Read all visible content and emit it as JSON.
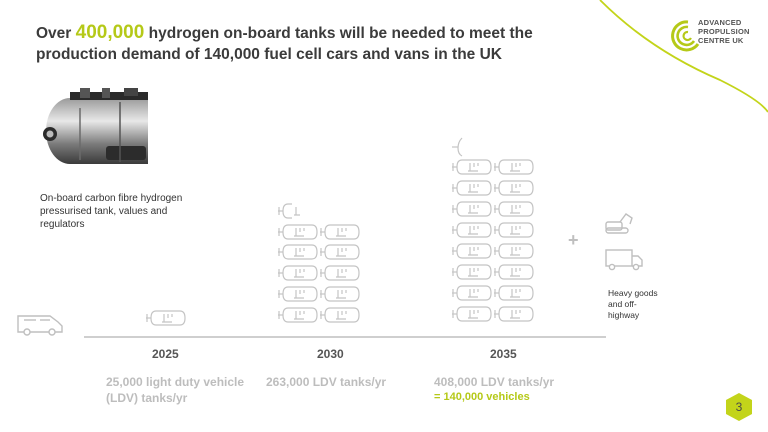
{
  "title": {
    "prefix": "Over ",
    "highlight": "400,000",
    "rest": " hydrogen on-board tanks will be needed to meet the production demand of 140,000 fuel cell cars and vans in the UK"
  },
  "logo": {
    "line1": "ADVANCED",
    "line2": "PROPULSION",
    "line3": "CENTRE UK"
  },
  "tank_caption": "On-board carbon fibre hydrogen pressurised tank, values and regulators",
  "years": {
    "y2025": "2025",
    "y2030": "2030",
    "y2035": "2035"
  },
  "labels": {
    "l2025": "25,000 light duty vehicle (LDV) tanks/yr",
    "l2030": "263,000 LDV tanks/yr",
    "l2035": "408,000 LDV tanks/yr",
    "l2035_vehicles": "= 140,000 vehicles"
  },
  "plus": "+",
  "hgv_label": "Heavy goods and off-highway",
  "page_number": "3",
  "colors": {
    "accent": "#b5c918",
    "icon_grey": "#c4c4c4"
  },
  "icons": [
    "van-icon",
    "tank-icon",
    "excavator-icon",
    "truck-icon",
    "hexagon-icon"
  ]
}
